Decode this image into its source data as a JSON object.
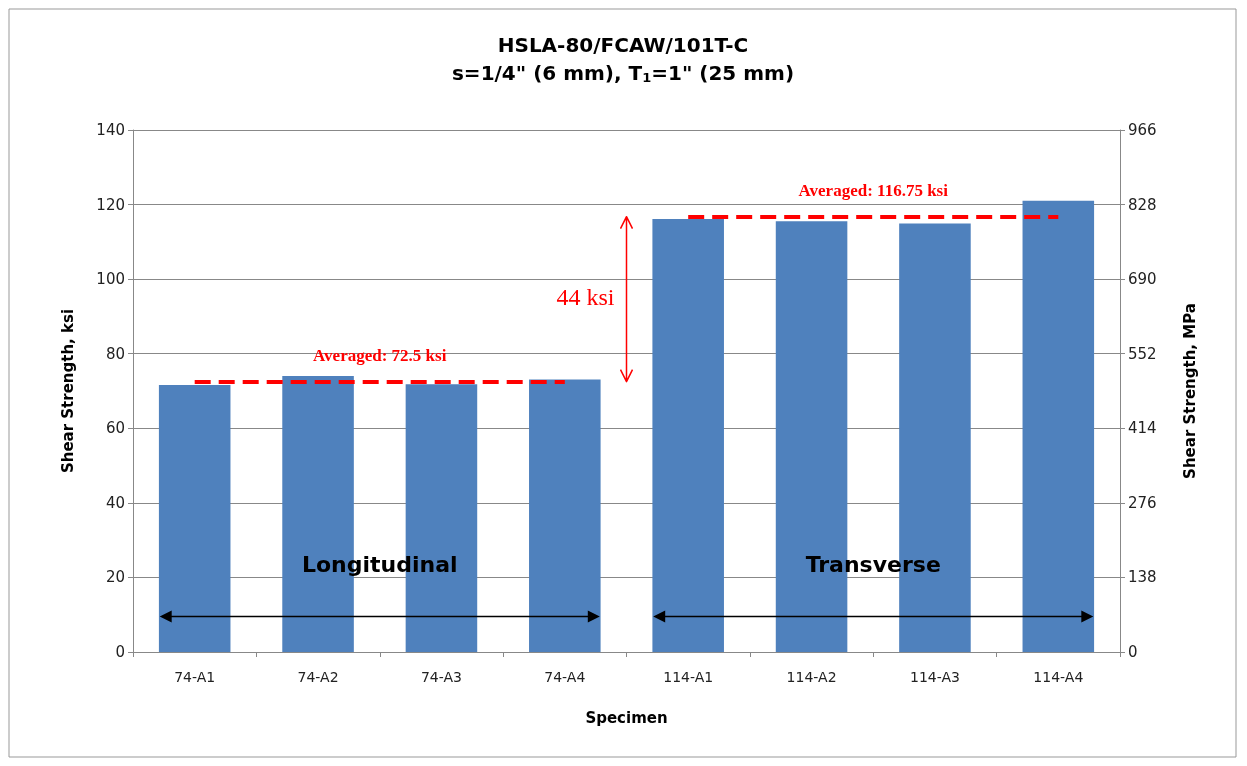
{
  "chart_data": {
    "type": "bar",
    "title": "HSLA-80/FCAW/101T-C",
    "subtitle": "s=1/4\" (6 mm), T$_{1}$=1\" (25 mm)",
    "xlabel": "Specimen",
    "ylabel": "Shear Strength, ksi",
    "y2label": "Shear Strength, MPa",
    "categories": [
      "74-A1",
      "74-A2",
      "74-A3",
      "74-A4",
      "114-A1",
      "114-A2",
      "114-A3",
      "114-A4"
    ],
    "values": [
      71.6,
      74.0,
      71.8,
      73.1,
      116.1,
      115.5,
      114.9,
      121.0
    ],
    "color": "#4f81bd",
    "ylim": [
      0,
      140
    ],
    "yticks": [
      0,
      20,
      40,
      60,
      80,
      100,
      120,
      140
    ],
    "y2lim": [
      0,
      966
    ],
    "y2ticks": [
      0,
      138,
      276,
      414,
      552,
      690,
      828,
      966
    ],
    "grid": "y",
    "ref_lines": [
      {
        "axis": "y",
        "value": 72.5,
        "label": "Averaged: 72.5 ksi",
        "color": "#ff0000",
        "line_style": "dashed"
      },
      {
        "axis": "y",
        "value": 116.75,
        "label": "Averaged: 116.75 ksi",
        "color": "#ff0000",
        "line_style": "dashed"
      }
    ],
    "annotations": [
      "44 ksi",
      "Longitudinal",
      "Transverse"
    ]
  }
}
